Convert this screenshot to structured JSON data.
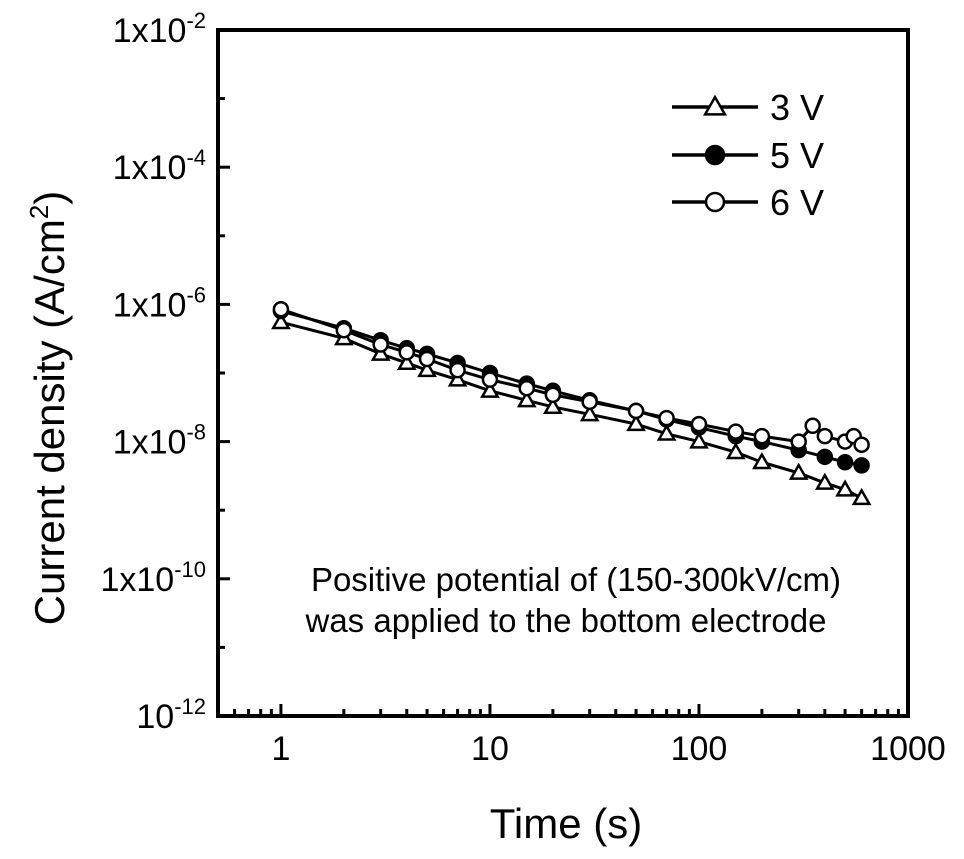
{
  "chart_data": {
    "type": "scatter",
    "title": "",
    "xlabel": "Time (s)",
    "ylabel": "Current density (A/cm²)",
    "xscale": "log",
    "yscale": "log",
    "xlim": [
      0.5,
      1000
    ],
    "ylim": [
      1e-12,
      0.01
    ],
    "x_ticks": [
      {
        "value": 1,
        "label": "1"
      },
      {
        "value": 10,
        "label": "10"
      },
      {
        "value": 100,
        "label": "100"
      },
      {
        "value": 1000,
        "label": "1000"
      }
    ],
    "y_ticks": [
      {
        "value": 0.01,
        "label": "1x10",
        "exp": "-2"
      },
      {
        "value": 0.0001,
        "label": "1x10",
        "exp": "-4"
      },
      {
        "value": 1e-06,
        "label": "1x10",
        "exp": "-6"
      },
      {
        "value": 1e-08,
        "label": "1x10",
        "exp": "-8"
      },
      {
        "value": 1e-10,
        "label": "1x10",
        "exp": "-10"
      },
      {
        "value": 1e-12,
        "label": "10",
        "exp": "-12"
      }
    ],
    "legend_position": "top-right",
    "series": [
      {
        "name": "3 V",
        "marker": "triangle-open",
        "x": [
          1,
          2,
          3,
          4,
          5,
          7,
          10,
          15,
          20,
          30,
          50,
          70,
          100,
          150,
          200,
          300,
          400,
          500,
          600
        ],
        "y": [
          5.5e-07,
          3.2e-07,
          1.9e-07,
          1.4e-07,
          1.1e-07,
          8e-08,
          5.5e-08,
          4e-08,
          3.2e-08,
          2.5e-08,
          1.8e-08,
          1.3e-08,
          1e-08,
          7e-09,
          5e-09,
          3.5e-09,
          2.5e-09,
          2e-09,
          1.5e-09
        ]
      },
      {
        "name": "5 V",
        "marker": "circle-filled",
        "x": [
          1,
          2,
          3,
          4,
          5,
          7,
          10,
          15,
          20,
          30,
          50,
          70,
          100,
          150,
          200,
          300,
          400,
          500,
          600
        ],
        "y": [
          8e-07,
          4.5e-07,
          3e-07,
          2.3e-07,
          1.9e-07,
          1.4e-07,
          1e-07,
          7e-08,
          5.5e-08,
          4e-08,
          2.8e-08,
          2.1e-08,
          1.6e-08,
          1.2e-08,
          1e-08,
          7.5e-09,
          6e-09,
          5e-09,
          4.5e-09
        ]
      },
      {
        "name": "6 V",
        "marker": "circle-open",
        "x": [
          1,
          2,
          3,
          4,
          5,
          7,
          10,
          15,
          20,
          30,
          50,
          70,
          100,
          150,
          200,
          300,
          350,
          400,
          500,
          550,
          600
        ],
        "y": [
          8.5e-07,
          4.2e-07,
          2.6e-07,
          2e-07,
          1.6e-07,
          1.1e-07,
          8e-08,
          6e-08,
          4.8e-08,
          3.8e-08,
          2.8e-08,
          2.2e-08,
          1.8e-08,
          1.4e-08,
          1.2e-08,
          1e-08,
          1.7e-08,
          1.2e-08,
          1e-08,
          1.2e-08,
          9e-09
        ]
      }
    ],
    "annotation": [
      "Positive potential of (150-300kV/cm)",
      "was applied to the bottom electrode"
    ]
  }
}
